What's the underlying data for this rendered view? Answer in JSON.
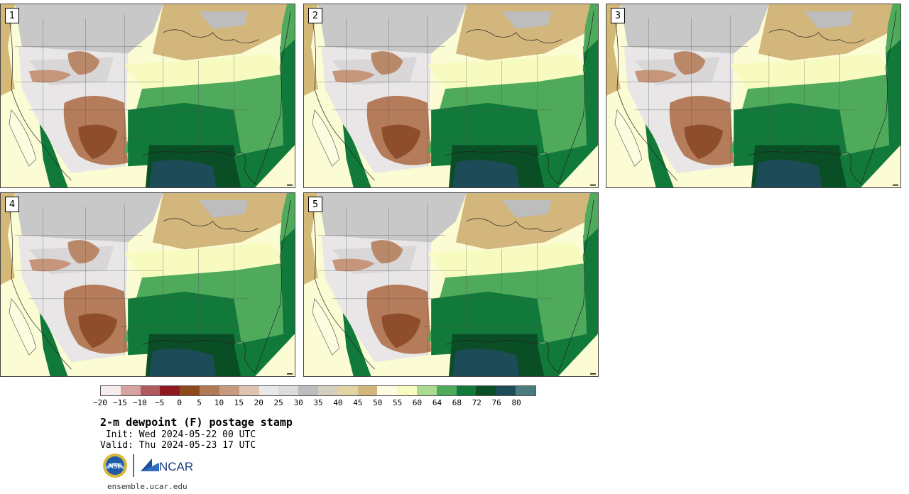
{
  "panels": [
    {
      "label": "1"
    },
    {
      "label": "2"
    },
    {
      "label": "3"
    },
    {
      "label": "4"
    },
    {
      "label": "5"
    }
  ],
  "colorbar": {
    "colors": [
      "#f5ecec",
      "#d6a3a3",
      "#b05a5f",
      "#8e1a1f",
      "#8c4a1a",
      "#b07a56",
      "#c69a7e",
      "#e0c4b2",
      "#e8e8e8",
      "#dcdcdc",
      "#bdbdbd",
      "#d3d0c0",
      "#e2d3a4",
      "#d2b67c",
      "#fdfce0",
      "#f8fbc0",
      "#a9dc92",
      "#4faa5c",
      "#117a3a",
      "#0a4e26",
      "#1e4b58",
      "#4a7c7e"
    ],
    "tick_labels": [
      "−20",
      "−15",
      "−10",
      "−5",
      "0",
      "5",
      "10",
      "15",
      "20",
      "25",
      "30",
      "35",
      "40",
      "45",
      "50",
      "55",
      "60",
      "64",
      "68",
      "72",
      "76",
      "80"
    ]
  },
  "title": "2-m dewpoint (F) postage stamp",
  "init": " Init: Wed 2024-05-22 00 UTC",
  "valid": "Valid: Thu 2024-05-23 17 UTC",
  "logos": {
    "nsf": "NSF",
    "ncar": "NCAR"
  },
  "website": "ensemble.ucar.edu"
}
